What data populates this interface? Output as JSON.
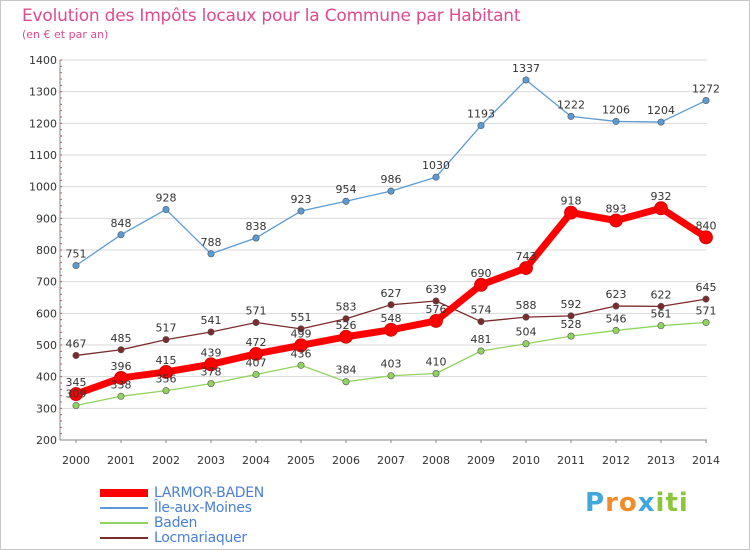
{
  "title": "Evolution des Impôts locaux pour la Commune par Habitant",
  "subtitle": "(en € et par an)",
  "brand": {
    "text": "Proxiti",
    "letters": [
      {
        "ch": "P",
        "color": "#3fa9dd"
      },
      {
        "ch": "r",
        "color": "#f28c28"
      },
      {
        "ch": "o",
        "color": "#f28c28"
      },
      {
        "ch": "x",
        "color": "#3fa9dd"
      },
      {
        "ch": "i",
        "color": "#8cc63f"
      },
      {
        "ch": "t",
        "color": "#8cc63f"
      },
      {
        "ch": "i",
        "color": "#8cc63f"
      }
    ]
  },
  "chart_data": {
    "type": "line",
    "title": "Evolution des Impôts locaux pour la Commune par Habitant",
    "subtitle": "(en € et par an)",
    "x": [
      "2000",
      "2001",
      "2002",
      "2003",
      "2004",
      "2005",
      "2006",
      "2007",
      "2008",
      "2009",
      "2010",
      "2011",
      "2012",
      "2013",
      "2014"
    ],
    "ylim": [
      200,
      1400
    ],
    "yticks": [
      200,
      300,
      400,
      500,
      600,
      700,
      800,
      900,
      1000,
      1100,
      1200,
      1300,
      1400
    ],
    "grid": true,
    "legend_position": "bottom-left",
    "series": [
      {
        "name": "LARMOR-BADEN",
        "color": "#ff0000",
        "emphasis": true,
        "values": [
          345,
          396,
          415,
          439,
          472,
          499,
          526,
          548,
          576,
          690,
          743,
          918,
          893,
          932,
          840
        ]
      },
      {
        "name": "Île-aux-Moines",
        "color": "#5b9bd5",
        "emphasis": false,
        "values": [
          751,
          848,
          928,
          788,
          838,
          923,
          954,
          986,
          1030,
          1193,
          1337,
          1222,
          1206,
          1204,
          1272
        ]
      },
      {
        "name": "Baden",
        "color": "#8fd45f",
        "emphasis": false,
        "values": [
          309,
          338,
          356,
          378,
          407,
          436,
          384,
          403,
          410,
          481,
          504,
          528,
          546,
          561,
          571
        ]
      },
      {
        "name": "Locmariaquer",
        "color": "#7b2b2b",
        "emphasis": false,
        "values": [
          467,
          485,
          517,
          541,
          571,
          551,
          583,
          627,
          639,
          574,
          588,
          592,
          623,
          622,
          645
        ]
      }
    ]
  }
}
